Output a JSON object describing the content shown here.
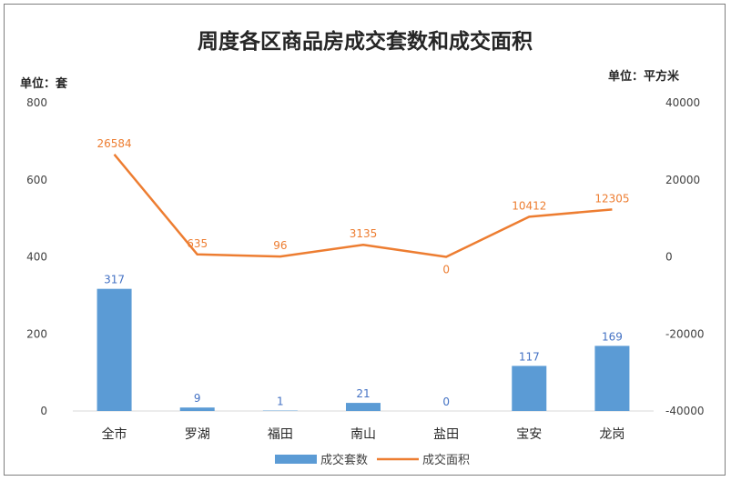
{
  "chart_data": {
    "type": "bar",
    "title": "周度各区商品房成交套数和成交面积",
    "left_unit": "单位：套",
    "right_unit": "单位：平方米",
    "categories": [
      "全市",
      "罗湖",
      "福田",
      "南山",
      "盐田",
      "宝安",
      "龙岗"
    ],
    "series": [
      {
        "name": "成交套数",
        "type": "bar",
        "axis": "left",
        "values": [
          317,
          9,
          1,
          21,
          0,
          117,
          169
        ],
        "color": "#5b9bd5"
      },
      {
        "name": "成交面积",
        "type": "line",
        "axis": "right",
        "values": [
          26584,
          635,
          96,
          3135,
          0,
          10412,
          12305
        ],
        "color": "#ed7d31"
      }
    ],
    "y_left": {
      "min": 0,
      "max": 800,
      "ticks": [
        0,
        200,
        400,
        600,
        800
      ]
    },
    "y_right": {
      "min": -40000,
      "max": 40000,
      "ticks": [
        -40000,
        -20000,
        0,
        20000,
        40000
      ]
    },
    "grid": false,
    "legend": "bottom"
  }
}
